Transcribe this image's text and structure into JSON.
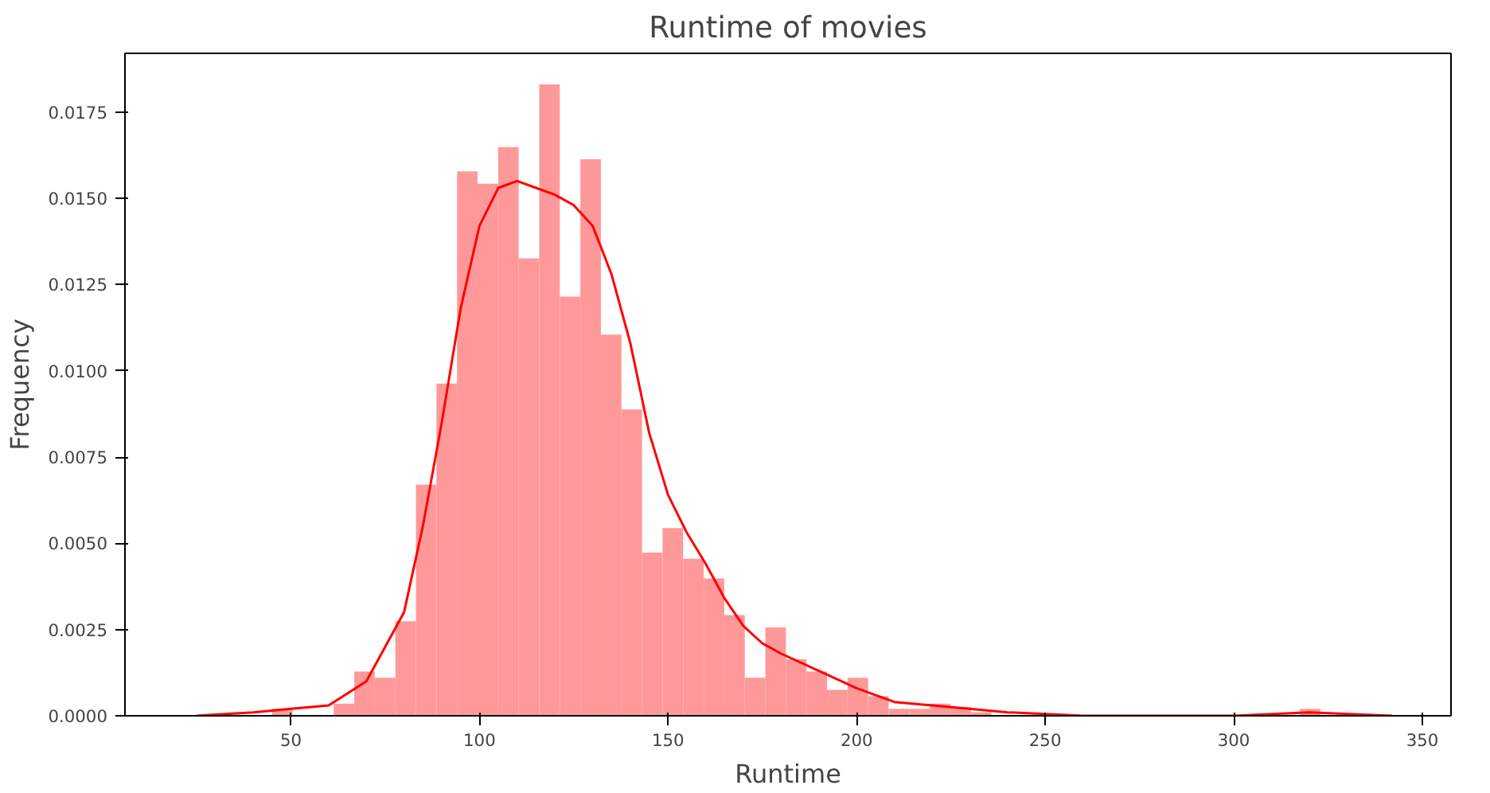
{
  "chart_data": {
    "type": "histogram",
    "title": "Runtime of movies",
    "xlabel": "Runtime",
    "ylabel": "Frequency",
    "bins": [
      45,
      50.45,
      55.9,
      61.35,
      66.8,
      72.25,
      77.7,
      83.15,
      88.6,
      94.05,
      99.5,
      104.95,
      110.4,
      115.85,
      121.3,
      126.75,
      132.2,
      137.65,
      143.1,
      148.55,
      154,
      159.45,
      164.9,
      170.35,
      175.8,
      181.25,
      186.7,
      192.15,
      197.6,
      203.05,
      208.5,
      213.95,
      219.4,
      224.85,
      230.3,
      235.75,
      241.2,
      246.65,
      252.1,
      257.55,
      263,
      268.45,
      273.9,
      279.35,
      284.8,
      290.25,
      295.7,
      301.15,
      306.6,
      312.05,
      317.5,
      322.95
    ],
    "values": [
      0.0002,
      0,
      0,
      0.00035,
      0.00128,
      0.0011,
      0.00274,
      0.0067,
      0.00963,
      0.01578,
      0.01542,
      0.01648,
      0.01326,
      0.0183,
      0.01215,
      0.01613,
      0.01105,
      0.00888,
      0.00473,
      0.00544,
      0.00455,
      0.00398,
      0.00292,
      0.0011,
      0.00256,
      0.00164,
      0.00128,
      0.00075,
      0.0011,
      0.00057,
      0.0002,
      0.0002,
      0.00035,
      0.00025,
      0.0001,
      0,
      0,
      0,
      0,
      0,
      0,
      0,
      0,
      0,
      0,
      0,
      0,
      0,
      0,
      0,
      0.0002
    ],
    "color": "#ff9999",
    "series": [
      {
        "type": "line",
        "color": "#ff0000",
        "x": [
          25,
          40,
          50,
          60,
          70,
          80,
          85,
          90,
          95,
          100,
          105,
          110,
          115,
          120,
          125,
          130,
          135,
          140,
          145,
          150,
          155,
          160,
          165,
          170,
          175,
          180,
          190,
          200,
          210,
          220,
          230,
          240,
          260,
          300,
          320,
          342
        ],
        "values": [
          0,
          0.0001,
          0.0002,
          0.0003,
          0.001,
          0.003,
          0.0055,
          0.0085,
          0.0118,
          0.0142,
          0.0153,
          0.0155,
          0.0153,
          0.0151,
          0.0148,
          0.0142,
          0.0128,
          0.0108,
          0.0082,
          0.0064,
          0.0053,
          0.0044,
          0.0034,
          0.0026,
          0.0021,
          0.0018,
          0.0013,
          0.0008,
          0.0004,
          0.0003,
          0.0002,
          0.0001,
          0,
          0,
          0.0001,
          0
        ]
      }
    ],
    "xlim": [
      6,
      357.6
    ],
    "ylim": [
      0,
      0.0192
    ],
    "xticks": [
      50,
      100,
      150,
      200,
      250,
      300,
      350
    ],
    "yticks": [
      {
        "value": 0,
        "label": "0.0000"
      },
      {
        "value": 0.0025,
        "label": "0.0025"
      },
      {
        "value": 0.005,
        "label": "0.0050"
      },
      {
        "value": 0.0075,
        "label": "0.0075"
      },
      {
        "value": 0.01,
        "label": "0.0100"
      },
      {
        "value": 0.0125,
        "label": "0.0125"
      },
      {
        "value": 0.015,
        "label": "0.0150"
      },
      {
        "value": 0.0175,
        "label": "0.0175"
      }
    ],
    "grid": false
  }
}
